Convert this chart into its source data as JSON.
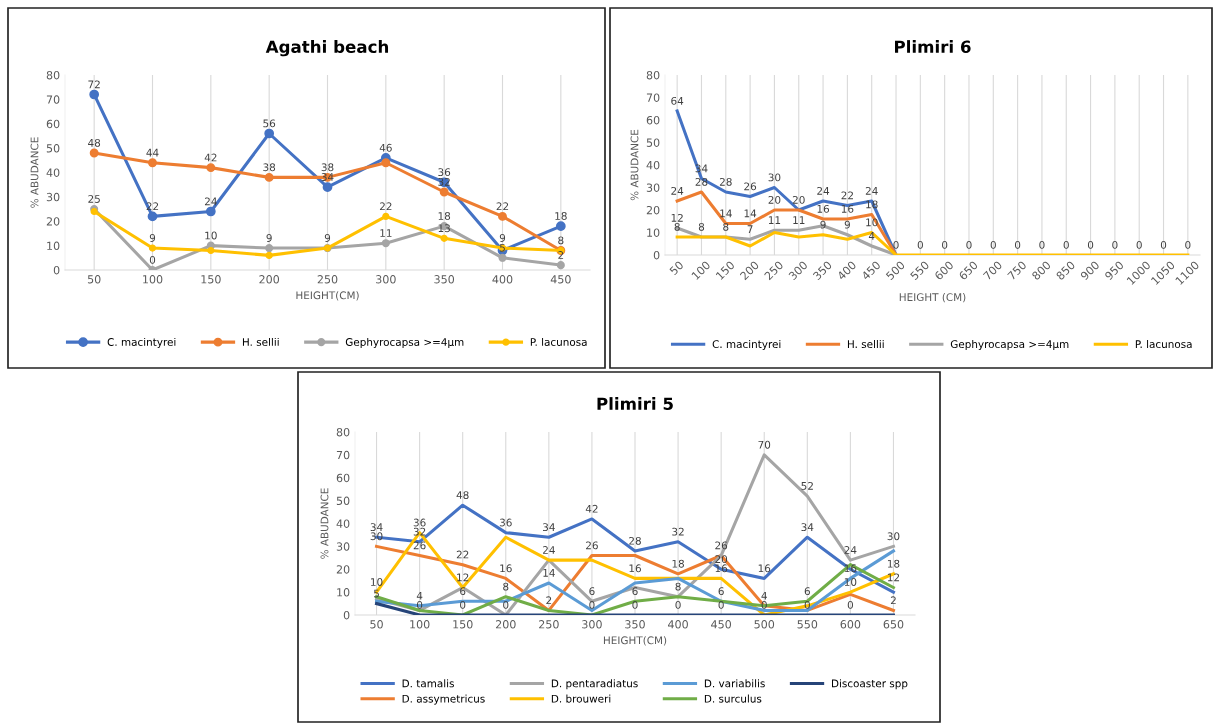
{
  "chart_data": [
    {
      "type": "line",
      "title": "Agathi beach",
      "xlabel": "HEIGHT(CM)",
      "ylabel": "% ABUDANCE",
      "categories": [
        "50",
        "100",
        "150",
        "200",
        "250",
        "300",
        "350",
        "400",
        "450"
      ],
      "ylim": [
        0,
        80
      ],
      "yticks": [
        0,
        10,
        20,
        30,
        40,
        50,
        60,
        70,
        80
      ],
      "grid": "x",
      "legend": "bottom",
      "marker": "circle",
      "series": [
        {
          "name": "C. macintyrei",
          "color": "#4472c4",
          "values": [
            72,
            22,
            24,
            56,
            34,
            46,
            36,
            8,
            18
          ],
          "value_labels": [
            "72",
            "22",
            "24",
            "56",
            "34",
            "46",
            "36",
            null,
            "18"
          ]
        },
        {
          "name": "H. sellii",
          "color": "#ed7d31",
          "values": [
            48,
            44,
            42,
            38,
            38,
            44,
            32,
            22,
            8
          ],
          "value_labels": [
            "48",
            "44",
            "42",
            "38",
            "38",
            null,
            "32",
            "22",
            "8"
          ]
        },
        {
          "name": "Gephyrocapsa >=4μm",
          "color": "#a5a5a5",
          "values": [
            25,
            0,
            10,
            9,
            9,
            11,
            18,
            5,
            2
          ],
          "value_labels": [
            "25",
            "0",
            "10",
            "9",
            "9",
            "11",
            "18",
            "5",
            "2"
          ]
        },
        {
          "name": "P. lacunosa",
          "color": "#ffc000",
          "values": [
            24,
            9,
            8,
            6,
            9,
            22,
            13,
            9,
            8
          ],
          "value_labels": [
            null,
            "9",
            null,
            null,
            null,
            "22",
            "13",
            "9",
            null
          ]
        }
      ]
    },
    {
      "type": "line",
      "title": "Plimiri 6",
      "xlabel": "HEIGHT (CM)",
      "ylabel": "% ABUDANCE",
      "categories": [
        "50",
        "100",
        "150",
        "200",
        "250",
        "300",
        "350",
        "400",
        "450",
        "500",
        "550",
        "600",
        "650",
        "700",
        "750",
        "800",
        "850",
        "900",
        "950",
        "1000",
        "1050",
        "1100"
      ],
      "ylim": [
        0,
        80
      ],
      "yticks": [
        0,
        10,
        20,
        30,
        40,
        50,
        60,
        70,
        80
      ],
      "grid": "x",
      "legend": "bottom",
      "series": [
        {
          "name": "C. macintyrei",
          "color": "#4472c4",
          "values": [
            64,
            34,
            28,
            26,
            30,
            20,
            24,
            22,
            24,
            0,
            null,
            null,
            null,
            null,
            null,
            null,
            null,
            null,
            null,
            null,
            null,
            null
          ],
          "value_labels": [
            "64",
            "34",
            "28",
            "26",
            "30",
            "20",
            "24",
            "22",
            "24",
            null,
            null,
            null,
            null,
            null,
            null,
            null,
            null,
            null,
            null,
            null,
            null,
            null
          ]
        },
        {
          "name": "H. sellii",
          "color": "#ed7d31",
          "values": [
            24,
            28,
            14,
            14,
            20,
            20,
            16,
            16,
            18,
            0,
            null,
            null,
            null,
            null,
            null,
            null,
            null,
            null,
            null,
            null,
            null,
            null
          ],
          "value_labels": [
            "24",
            "28",
            "14",
            "14",
            "20",
            null,
            "16",
            "16",
            "18",
            null,
            null,
            null,
            null,
            null,
            null,
            null,
            null,
            null,
            null,
            null,
            null,
            null
          ]
        },
        {
          "name": "Gephyrocapsa >=4μm",
          "color": "#a5a5a5",
          "values": [
            12,
            8,
            8,
            7,
            11,
            11,
            13,
            9,
            4,
            0,
            null,
            null,
            null,
            null,
            null,
            null,
            null,
            null,
            null,
            null,
            null,
            null
          ],
          "value_labels": [
            "12",
            "8",
            "8",
            "7",
            "11",
            "11",
            null,
            "9",
            "4",
            null,
            null,
            null,
            null,
            null,
            null,
            null,
            null,
            null,
            null,
            null,
            null,
            null
          ]
        },
        {
          "name": "P. lacunosa",
          "color": "#ffc000",
          "values": [
            8,
            8,
            8,
            4,
            10,
            8,
            9,
            7,
            10,
            0,
            0,
            0,
            0,
            0,
            0,
            0,
            0,
            0,
            0,
            0,
            0,
            0
          ],
          "value_labels": [
            "8",
            null,
            null,
            null,
            null,
            null,
            "9",
            null,
            "10",
            "0",
            "0",
            "0",
            "0",
            "0",
            "0",
            "0",
            "0",
            "0",
            "0",
            "0",
            "0",
            "0"
          ]
        }
      ]
    },
    {
      "type": "line",
      "title": "Plimiri 5",
      "xlabel": "HEIGHT(CM)",
      "ylabel": "% ABUDANCE",
      "categories": [
        "50",
        "100",
        "150",
        "200",
        "250",
        "300",
        "350",
        "400",
        "450",
        "500",
        "550",
        "600",
        "650"
      ],
      "ylim": [
        0,
        80
      ],
      "yticks": [
        0,
        10,
        20,
        30,
        40,
        50,
        60,
        70,
        80
      ],
      "grid": "x",
      "legend": "bottom",
      "series": [
        {
          "name": "D. tamalis",
          "color": "#4472c4",
          "values": [
            34,
            32,
            48,
            36,
            34,
            42,
            28,
            32,
            20,
            16,
            34,
            20,
            10
          ],
          "value_labels": [
            "34",
            "32",
            "48",
            "36",
            "34",
            "42",
            "28",
            "32",
            "20",
            "16",
            "34",
            null,
            null
          ]
        },
        {
          "name": "D. assymetricus",
          "color": "#ed7d31",
          "values": [
            30,
            26,
            22,
            16,
            2,
            26,
            26,
            18,
            26,
            4,
            2,
            9,
            2
          ],
          "value_labels": [
            "30",
            "26",
            "22",
            "16",
            "2",
            "26",
            null,
            "18",
            "26",
            "4",
            null,
            null,
            "2"
          ]
        },
        {
          "name": "D. pentaradiatus",
          "color": "#a5a5a5",
          "values": [
            7,
            2,
            12,
            0,
            24,
            6,
            12,
            8,
            26,
            70,
            52,
            24,
            30
          ],
          "value_labels": [
            null,
            null,
            "12",
            null,
            "24",
            "6",
            null,
            null,
            null,
            "70",
            "52",
            "24",
            "30"
          ]
        },
        {
          "name": "D. brouweri",
          "color": "#ffc000",
          "values": [
            10,
            36,
            12,
            34,
            24,
            24,
            16,
            16,
            16,
            0,
            4,
            10,
            18
          ],
          "value_labels": [
            "10",
            "36",
            null,
            null,
            null,
            null,
            "16",
            null,
            "16",
            null,
            null,
            "10",
            "18"
          ]
        },
        {
          "name": "D. variabilis",
          "color": "#5b9bd5",
          "values": [
            6,
            4,
            6,
            6,
            14,
            2,
            14,
            16,
            6,
            2,
            2,
            16,
            28
          ],
          "value_labels": [
            null,
            "4",
            "6",
            null,
            "14",
            null,
            null,
            null,
            "6",
            null,
            null,
            "16",
            null
          ]
        },
        {
          "name": "D. surculus",
          "color": "#70ad47",
          "values": [
            8,
            2,
            0,
            8,
            2,
            0,
            6,
            8,
            6,
            4,
            6,
            22,
            12
          ],
          "value_labels": [
            null,
            null,
            null,
            "8",
            null,
            null,
            "6",
            "8",
            null,
            null,
            "6",
            null,
            "12"
          ]
        },
        {
          "name": "Discoaster spp",
          "color": "#264478",
          "values": [
            5,
            0,
            0,
            0,
            0,
            0,
            0,
            0,
            0,
            0,
            0,
            0,
            0
          ],
          "value_labels": [
            "5",
            "0",
            "0",
            "0",
            null,
            "0",
            "0",
            "0",
            "0",
            "0",
            "0",
            "0",
            null
          ]
        }
      ]
    }
  ]
}
